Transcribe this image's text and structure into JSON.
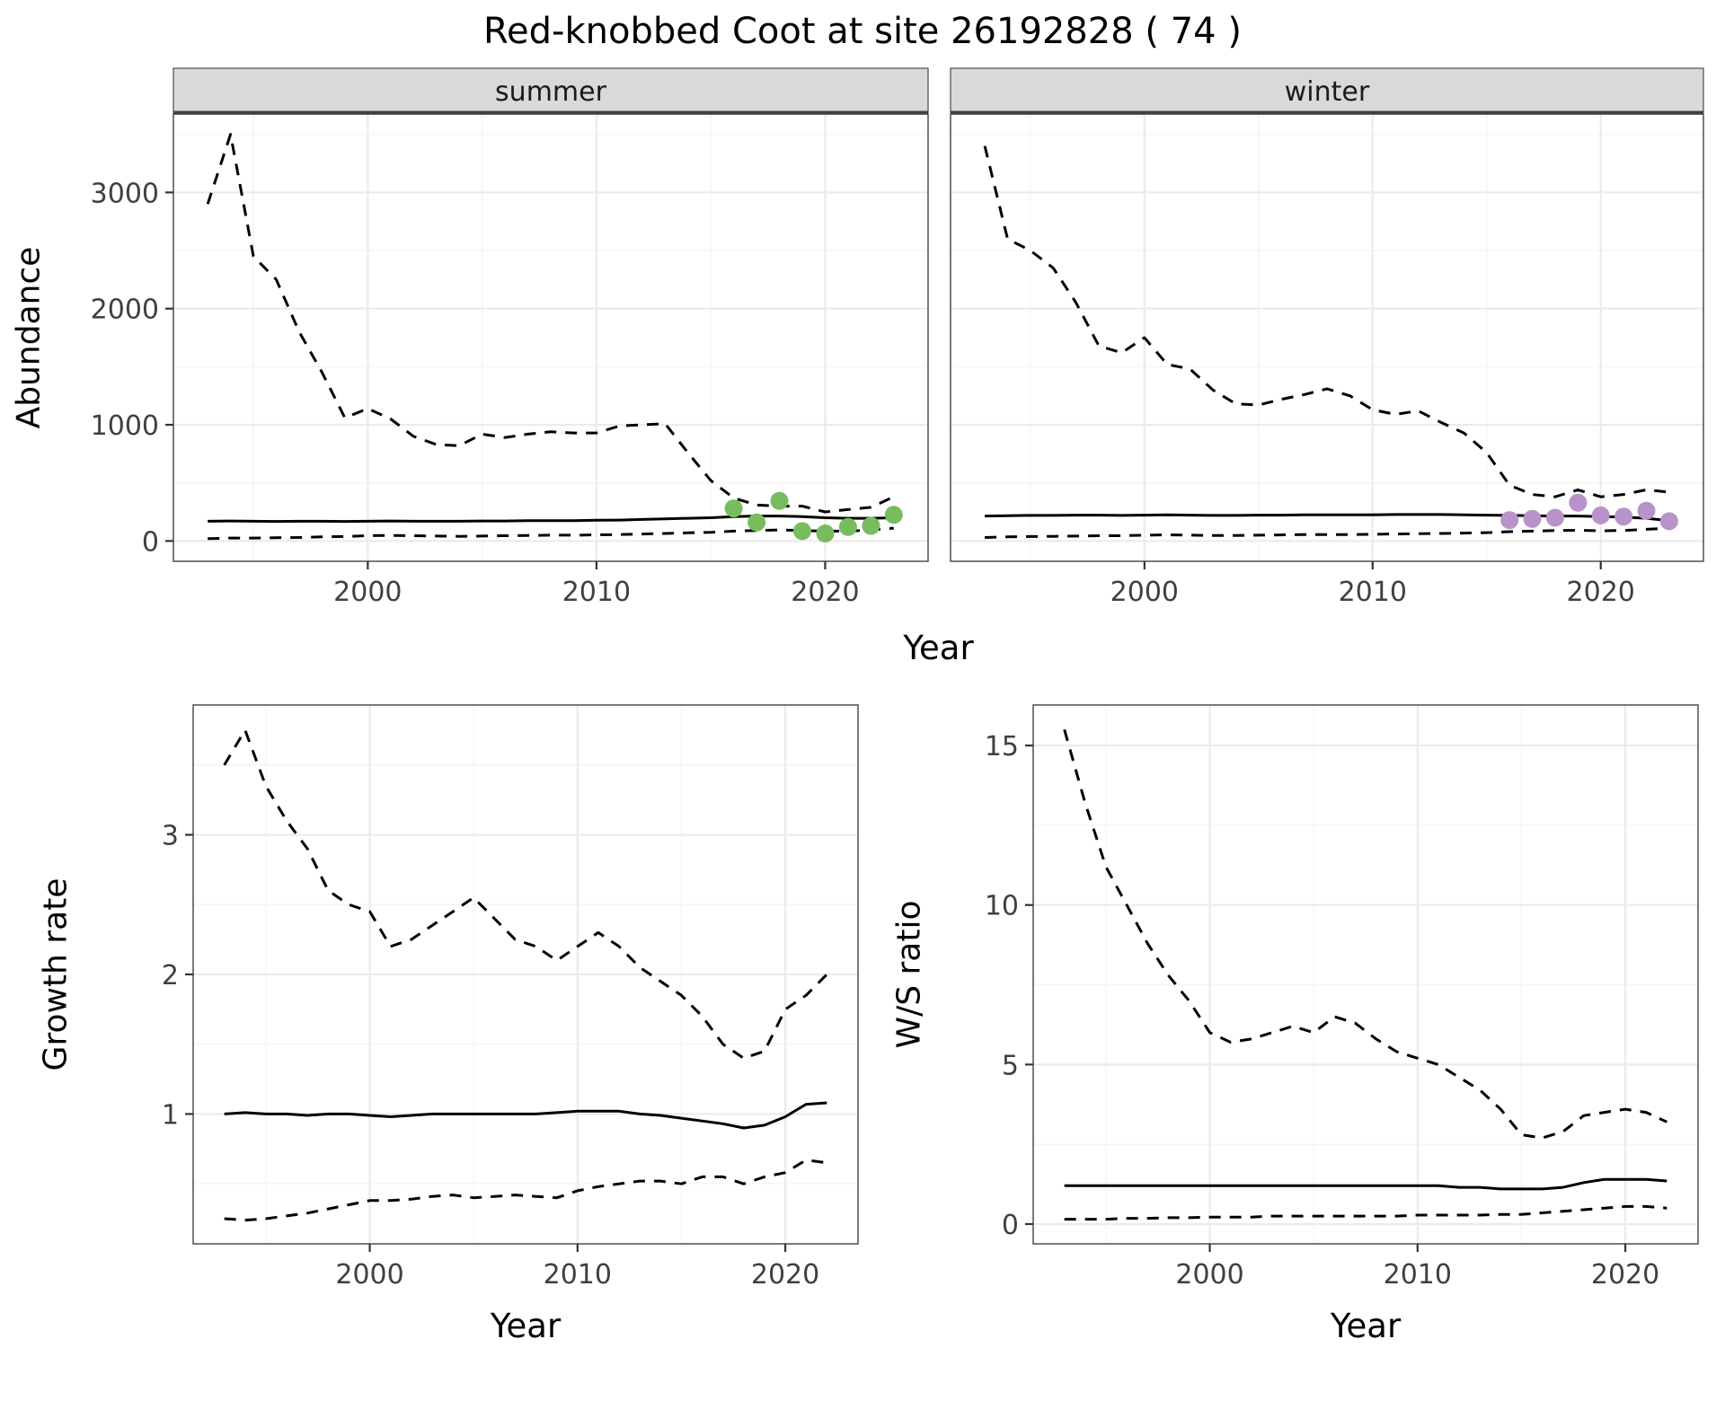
{
  "title": "Red-knobbed Coot at site 26192828 ( 74 )",
  "axes": {
    "abundance_ylabel": "Abundance",
    "top_xlabel": "Year",
    "growth_ylabel": "Growth rate",
    "growth_xlabel": "Year",
    "ws_ylabel": "W/S ratio",
    "ws_xlabel": "Year"
  },
  "colors": {
    "line": "#000000",
    "summer_points": "#77bd5e",
    "winter_points": "#b793c9",
    "strip_fill": "#d9d9d9",
    "strip_border": "#4d4d4d",
    "grid_major": "#ebebeb",
    "grid_minor": "#f5f5f5",
    "panel_border": "#595959",
    "axis_text": "#404040"
  },
  "chart_data": [
    {
      "id": "abundance-summer",
      "type": "line",
      "facet_label": "summer",
      "xlabel": "Year",
      "ylabel": "Abundance",
      "xlim": [
        1991.5,
        2024.5
      ],
      "ylim": [
        -175,
        3675
      ],
      "xticks": [
        2000,
        2010,
        2020
      ],
      "yticks": [
        0,
        1000,
        2000,
        3000
      ],
      "x": [
        1993,
        1994,
        1995,
        1996,
        1997,
        1998,
        1999,
        2000,
        2001,
        2002,
        2003,
        2004,
        2005,
        2006,
        2007,
        2008,
        2009,
        2010,
        2011,
        2012,
        2013,
        2014,
        2015,
        2016,
        2017,
        2018,
        2019,
        2020,
        2021,
        2022,
        2023
      ],
      "series": [
        {
          "name": "upper_95ci",
          "style": "dashed",
          "values": [
            2900,
            3500,
            2450,
            2250,
            1800,
            1450,
            1060,
            1140,
            1050,
            900,
            830,
            820,
            920,
            890,
            920,
            940,
            930,
            930,
            990,
            1000,
            1010,
            760,
            520,
            370,
            310,
            300,
            300,
            250,
            270,
            290,
            380
          ]
        },
        {
          "name": "estimate",
          "style": "solid",
          "values": [
            170,
            172,
            170,
            168,
            170,
            170,
            168,
            170,
            172,
            170,
            170,
            170,
            172,
            172,
            175,
            175,
            175,
            178,
            180,
            185,
            190,
            195,
            200,
            210,
            215,
            215,
            210,
            200,
            195,
            195,
            200
          ]
        },
        {
          "name": "lower_95ci",
          "style": "dashed",
          "values": [
            20,
            25,
            25,
            28,
            30,
            35,
            38,
            45,
            48,
            45,
            42,
            40,
            42,
            45,
            48,
            50,
            50,
            52,
            55,
            60,
            65,
            70,
            75,
            85,
            90,
            95,
            90,
            85,
            85,
            95,
            110
          ]
        }
      ],
      "points": {
        "name": "observed_counts_summer",
        "color": "#77bd5e",
        "x": [
          2016,
          2017,
          2018,
          2019,
          2020,
          2021,
          2022,
          2023
        ],
        "y": [
          280,
          160,
          345,
          85,
          65,
          120,
          130,
          225
        ]
      }
    },
    {
      "id": "abundance-winter",
      "type": "line",
      "facet_label": "winter",
      "xlabel": "Year",
      "ylabel": "Abundance",
      "xlim": [
        1991.5,
        2024.5
      ],
      "ylim": [
        -175,
        3675
      ],
      "xticks": [
        2000,
        2010,
        2020
      ],
      "yticks": [
        0,
        1000,
        2000,
        3000
      ],
      "x": [
        1993,
        1994,
        1995,
        1996,
        1997,
        1998,
        1999,
        2000,
        2001,
        2002,
        2003,
        2004,
        2005,
        2006,
        2007,
        2008,
        2009,
        2010,
        2011,
        2012,
        2013,
        2014,
        2015,
        2016,
        2017,
        2018,
        2019,
        2020,
        2021,
        2022,
        2023
      ],
      "series": [
        {
          "name": "upper_95ci",
          "style": "dashed",
          "values": [
            3400,
            2600,
            2500,
            2350,
            2050,
            1680,
            1620,
            1750,
            1520,
            1480,
            1300,
            1180,
            1170,
            1220,
            1260,
            1310,
            1250,
            1130,
            1090,
            1120,
            1020,
            930,
            760,
            480,
            400,
            380,
            440,
            380,
            400,
            440,
            420
          ]
        },
        {
          "name": "estimate",
          "style": "solid",
          "values": [
            215,
            218,
            220,
            220,
            222,
            222,
            220,
            222,
            225,
            222,
            220,
            220,
            222,
            222,
            225,
            225,
            225,
            225,
            228,
            228,
            228,
            225,
            222,
            220,
            218,
            215,
            215,
            210,
            205,
            195,
            175
          ]
        },
        {
          "name": "lower_95ci",
          "style": "dashed",
          "values": [
            30,
            35,
            38,
            40,
            42,
            45,
            45,
            50,
            52,
            50,
            48,
            48,
            50,
            52,
            55,
            55,
            55,
            58,
            60,
            62,
            65,
            68,
            72,
            80,
            85,
            90,
            92,
            88,
            90,
            100,
            110
          ]
        }
      ],
      "points": {
        "name": "observed_counts_winter",
        "color": "#b793c9",
        "x": [
          2016,
          2017,
          2018,
          2019,
          2020,
          2021,
          2022,
          2023
        ],
        "y": [
          180,
          190,
          200,
          330,
          220,
          210,
          260,
          170
        ]
      }
    },
    {
      "id": "growth-rate",
      "type": "line",
      "facet_label": null,
      "xlabel": "Year",
      "ylabel": "Growth rate",
      "xlim": [
        1991.5,
        2023.5
      ],
      "ylim": [
        0.07,
        3.93
      ],
      "xticks": [
        2000,
        2010,
        2020
      ],
      "yticks": [
        1,
        2,
        3
      ],
      "x": [
        1993,
        1994,
        1995,
        1996,
        1997,
        1998,
        1999,
        2000,
        2001,
        2002,
        2003,
        2004,
        2005,
        2006,
        2007,
        2008,
        2009,
        2010,
        2011,
        2012,
        2013,
        2014,
        2015,
        2016,
        2017,
        2018,
        2019,
        2020,
        2021,
        2022
      ],
      "series": [
        {
          "name": "upper_95ci",
          "style": "dashed",
          "values": [
            3.5,
            3.75,
            3.35,
            3.1,
            2.9,
            2.6,
            2.5,
            2.45,
            2.2,
            2.25,
            2.35,
            2.45,
            2.55,
            2.4,
            2.25,
            2.2,
            2.1,
            2.2,
            2.3,
            2.2,
            2.05,
            1.95,
            1.85,
            1.7,
            1.5,
            1.4,
            1.45,
            1.75,
            1.85,
            2.0
          ]
        },
        {
          "name": "estimate",
          "style": "solid",
          "values": [
            1.0,
            1.01,
            1.0,
            1.0,
            0.99,
            1.0,
            1.0,
            0.99,
            0.98,
            0.99,
            1.0,
            1.0,
            1.0,
            1.0,
            1.0,
            1.0,
            1.01,
            1.02,
            1.02,
            1.02,
            1.0,
            0.99,
            0.97,
            0.95,
            0.93,
            0.9,
            0.92,
            0.98,
            1.07,
            1.08
          ]
        },
        {
          "name": "lower_95ci",
          "style": "dashed",
          "values": [
            0.25,
            0.24,
            0.25,
            0.27,
            0.29,
            0.32,
            0.35,
            0.38,
            0.38,
            0.39,
            0.41,
            0.42,
            0.4,
            0.41,
            0.42,
            0.41,
            0.4,
            0.45,
            0.48,
            0.5,
            0.52,
            0.52,
            0.5,
            0.55,
            0.55,
            0.5,
            0.55,
            0.58,
            0.67,
            0.65
          ]
        }
      ],
      "points": null
    },
    {
      "id": "ws-ratio",
      "type": "line",
      "facet_label": null,
      "xlabel": "Year",
      "ylabel": "W/S ratio",
      "xlim": [
        1991.5,
        2023.5
      ],
      "ylim": [
        -0.62,
        16.27
      ],
      "xticks": [
        2000,
        2010,
        2020
      ],
      "yticks": [
        0,
        5,
        10,
        15
      ],
      "x": [
        1993,
        1994,
        1995,
        1996,
        1997,
        1998,
        1999,
        2000,
        2001,
        2002,
        2003,
        2004,
        2005,
        2006,
        2007,
        2008,
        2009,
        2010,
        2011,
        2012,
        2013,
        2014,
        2015,
        2016,
        2017,
        2018,
        2019,
        2020,
        2021,
        2022
      ],
      "series": [
        {
          "name": "upper_95ci",
          "style": "dashed",
          "values": [
            15.5,
            13.2,
            11.2,
            10.0,
            8.8,
            7.8,
            7.0,
            6.0,
            5.7,
            5.8,
            6.0,
            6.2,
            6.0,
            6.5,
            6.3,
            5.8,
            5.4,
            5.2,
            5.0,
            4.6,
            4.2,
            3.6,
            2.8,
            2.7,
            2.9,
            3.4,
            3.5,
            3.6,
            3.5,
            3.2
          ]
        },
        {
          "name": "estimate",
          "style": "solid",
          "values": [
            1.2,
            1.2,
            1.2,
            1.2,
            1.2,
            1.2,
            1.2,
            1.2,
            1.2,
            1.2,
            1.2,
            1.2,
            1.2,
            1.2,
            1.2,
            1.2,
            1.2,
            1.2,
            1.2,
            1.15,
            1.15,
            1.1,
            1.1,
            1.1,
            1.15,
            1.3,
            1.4,
            1.4,
            1.4,
            1.35
          ]
        },
        {
          "name": "lower_95ci",
          "style": "dashed",
          "values": [
            0.15,
            0.15,
            0.15,
            0.18,
            0.18,
            0.2,
            0.2,
            0.22,
            0.22,
            0.22,
            0.25,
            0.25,
            0.25,
            0.25,
            0.25,
            0.25,
            0.25,
            0.28,
            0.28,
            0.28,
            0.28,
            0.3,
            0.3,
            0.35,
            0.4,
            0.45,
            0.5,
            0.55,
            0.55,
            0.5
          ]
        }
      ],
      "points": null
    }
  ]
}
